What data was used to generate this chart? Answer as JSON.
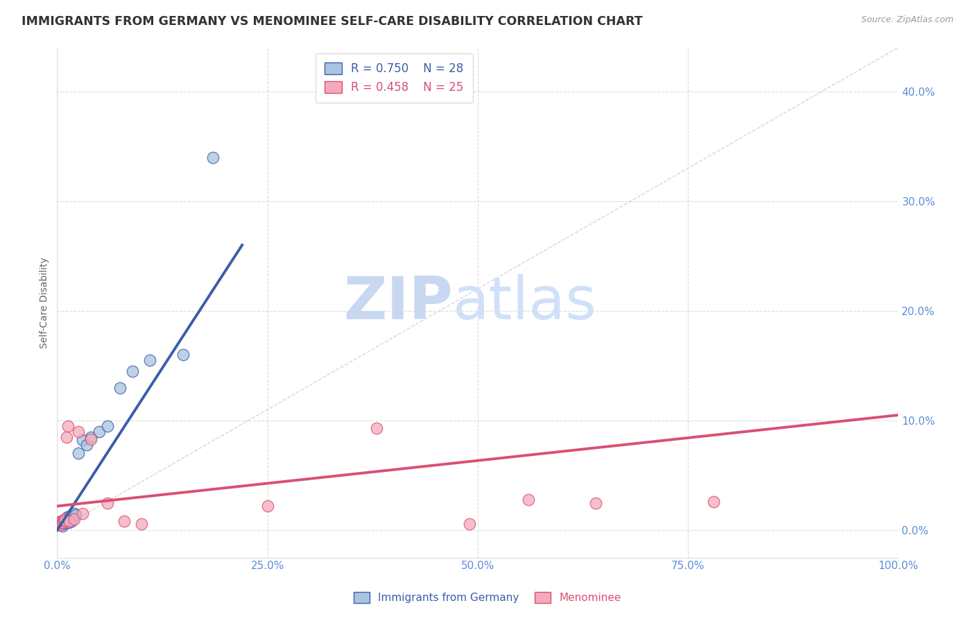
{
  "title": "IMMIGRANTS FROM GERMANY VS MENOMINEE SELF-CARE DISABILITY CORRELATION CHART",
  "source": "Source: ZipAtlas.com",
  "xlabel_blue": "Immigrants from Germany",
  "xlabel_pink": "Menominee",
  "ylabel": "Self-Care Disability",
  "watermark_zip": "ZIP",
  "watermark_atlas": "atlas",
  "blue_R": 0.75,
  "blue_N": 28,
  "pink_R": 0.458,
  "pink_N": 25,
  "blue_color": "#A8C4E0",
  "pink_color": "#F4AABC",
  "blue_line_color": "#3A5EA8",
  "pink_line_color": "#D94F72",
  "diag_line_color": "#CCCCCC",
  "grid_color": "#CCCCCC",
  "axis_color": "#5B8DD9",
  "title_color": "#333333",
  "xlim": [
    0.0,
    1.0
  ],
  "ylim": [
    -0.025,
    0.44
  ],
  "xticks": [
    0.0,
    0.25,
    0.5,
    0.75,
    1.0
  ],
  "yticks": [
    0.0,
    0.1,
    0.2,
    0.3,
    0.4
  ],
  "blue_scatter_x": [
    0.002,
    0.003,
    0.004,
    0.005,
    0.006,
    0.007,
    0.008,
    0.009,
    0.01,
    0.011,
    0.012,
    0.013,
    0.014,
    0.015,
    0.017,
    0.02,
    0.022,
    0.025,
    0.03,
    0.035,
    0.04,
    0.05,
    0.06,
    0.075,
    0.09,
    0.11,
    0.15,
    0.185
  ],
  "blue_scatter_y": [
    0.005,
    0.007,
    0.006,
    0.008,
    0.004,
    0.006,
    0.007,
    0.009,
    0.01,
    0.008,
    0.012,
    0.01,
    0.007,
    0.013,
    0.008,
    0.015,
    0.014,
    0.07,
    0.082,
    0.078,
    0.085,
    0.09,
    0.095,
    0.13,
    0.145,
    0.155,
    0.16,
    0.34
  ],
  "pink_scatter_x": [
    0.002,
    0.003,
    0.004,
    0.005,
    0.006,
    0.007,
    0.008,
    0.009,
    0.01,
    0.011,
    0.013,
    0.015,
    0.02,
    0.025,
    0.03,
    0.04,
    0.06,
    0.08,
    0.1,
    0.25,
    0.38,
    0.49,
    0.56,
    0.64,
    0.78
  ],
  "pink_scatter_y": [
    0.006,
    0.005,
    0.007,
    0.008,
    0.008,
    0.007,
    0.009,
    0.01,
    0.009,
    0.085,
    0.095,
    0.008,
    0.01,
    0.09,
    0.015,
    0.083,
    0.025,
    0.008,
    0.006,
    0.022,
    0.093,
    0.006,
    0.028,
    0.025,
    0.026
  ],
  "blue_trend_x": [
    0.0,
    0.22
  ],
  "blue_trend_y": [
    0.0,
    0.26
  ],
  "pink_trend_x": [
    0.0,
    1.0
  ],
  "pink_trend_y": [
    0.022,
    0.105
  ],
  "figsize": [
    14.06,
    8.92
  ],
  "dpi": 100
}
